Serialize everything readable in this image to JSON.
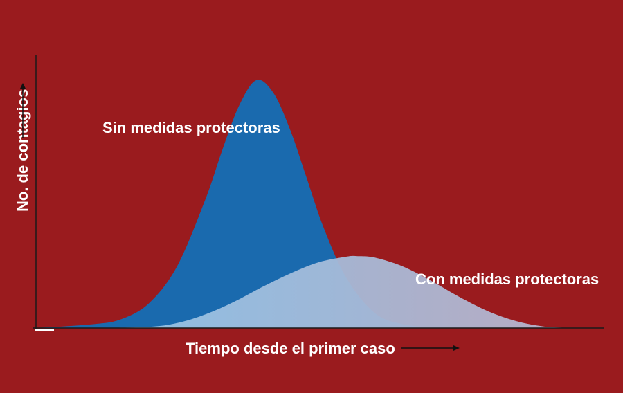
{
  "colors": {
    "background": "#9a1b1e",
    "series_without": "#1a6aae",
    "series_with": "#92c4e8",
    "overlap_fade": "#a6bfdb",
    "axis": "#1a1a1a",
    "text": "#ffffff"
  },
  "chart_data": {
    "type": "area",
    "title": "",
    "xlabel": "Tiempo desde el primer caso",
    "ylabel": "No. de contagios",
    "grid": false,
    "legend": "none",
    "x_ticks": false,
    "y_ticks": false,
    "xlim": [
      0,
      100
    ],
    "ylim": [
      0,
      100
    ],
    "series": [
      {
        "name": "Sin medidas protectoras",
        "shape": "bell",
        "peak_x": 39,
        "peak_y": 100,
        "x": [
          0,
          10,
          15,
          20,
          25,
          30,
          33,
          36,
          39,
          42,
          45,
          48,
          51,
          55,
          60,
          65,
          70,
          75,
          80,
          85,
          90
        ],
        "values": [
          0,
          1.5,
          3.5,
          10,
          25,
          52,
          72,
          90,
          100,
          95,
          80,
          60,
          40,
          20,
          6,
          1.5,
          0.4,
          0.1,
          0,
          0,
          0
        ]
      },
      {
        "name": "Con medidas protectoras",
        "shape": "bell",
        "peak_x": 57,
        "peak_y": 29,
        "x": [
          10,
          20,
          25,
          30,
          35,
          40,
          45,
          50,
          55,
          57,
          60,
          65,
          70,
          75,
          80,
          85,
          90,
          95
        ],
        "values": [
          0,
          0.5,
          2,
          5.5,
          10.5,
          16.5,
          22,
          26.5,
          28.8,
          29,
          28.4,
          24.8,
          19,
          12.5,
          6.8,
          2.8,
          0.6,
          0
        ]
      }
    ]
  }
}
